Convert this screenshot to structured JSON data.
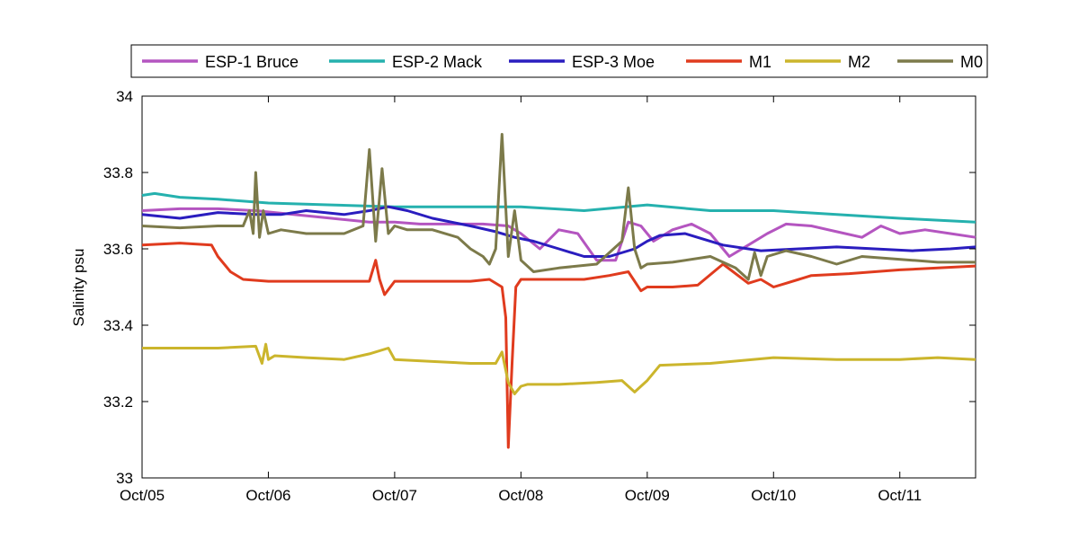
{
  "chart_data": {
    "type": "line",
    "title": "",
    "xlabel": "",
    "ylabel": "Salinity psu",
    "xlim": [
      0,
      6.6
    ],
    "ylim": [
      33,
      34
    ],
    "yticks": [
      33,
      33.2,
      33.4,
      33.6,
      33.8,
      34
    ],
    "ytick_labels": [
      "33",
      "33.2",
      "33.4",
      "33.6",
      "33.8",
      "34"
    ],
    "xticks": [
      0,
      1,
      2,
      3,
      4,
      5,
      6
    ],
    "xtick_labels": [
      "Oct/05",
      "Oct/06",
      "Oct/07",
      "Oct/08",
      "Oct/09",
      "Oct/10",
      "Oct/11"
    ],
    "grid": false,
    "legend_position": "top",
    "series": [
      {
        "name": "ESP-1 Bruce",
        "color": "#b455c0",
        "x": [
          0,
          0.3,
          0.6,
          0.9,
          1.2,
          1.5,
          1.8,
          2.0,
          2.2,
          2.5,
          2.7,
          2.9,
          3.0,
          3.15,
          3.3,
          3.45,
          3.6,
          3.75,
          3.85,
          3.95,
          4.05,
          4.2,
          4.35,
          4.5,
          4.65,
          4.8,
          4.95,
          5.1,
          5.3,
          5.5,
          5.7,
          5.85,
          6.0,
          6.2,
          6.4,
          6.6
        ],
        "y": [
          33.7,
          33.705,
          33.705,
          33.7,
          33.69,
          33.68,
          33.67,
          33.67,
          33.665,
          33.665,
          33.665,
          33.66,
          33.64,
          33.6,
          33.65,
          33.64,
          33.57,
          33.57,
          33.67,
          33.66,
          33.62,
          33.65,
          33.665,
          33.64,
          33.58,
          33.61,
          33.64,
          33.665,
          33.66,
          33.645,
          33.63,
          33.66,
          33.64,
          33.65,
          33.64,
          33.63
        ]
      },
      {
        "name": "ESP-2 Mack",
        "color": "#25b1ae",
        "x": [
          0,
          0.1,
          0.3,
          0.6,
          1.0,
          1.5,
          2.0,
          2.5,
          3.0,
          3.5,
          4.0,
          4.5,
          5.0,
          5.5,
          6.0,
          6.3,
          6.6
        ],
        "y": [
          33.74,
          33.745,
          33.735,
          33.73,
          33.72,
          33.715,
          33.71,
          33.71,
          33.71,
          33.7,
          33.715,
          33.7,
          33.7,
          33.69,
          33.68,
          33.675,
          33.67
        ]
      },
      {
        "name": "ESP-3 Moe",
        "color": "#2a1dbf",
        "x": [
          0,
          0.3,
          0.6,
          0.9,
          1.1,
          1.3,
          1.6,
          1.8,
          1.95,
          2.1,
          2.3,
          2.6,
          2.8,
          2.95,
          3.1,
          3.3,
          3.5,
          3.7,
          3.9,
          4.0,
          4.1,
          4.3,
          4.6,
          4.9,
          5.2,
          5.5,
          5.8,
          6.1,
          6.4,
          6.6
        ],
        "y": [
          33.69,
          33.68,
          33.695,
          33.69,
          33.69,
          33.7,
          33.69,
          33.7,
          33.71,
          33.7,
          33.68,
          33.66,
          33.645,
          33.63,
          33.62,
          33.6,
          33.58,
          33.58,
          33.6,
          33.62,
          33.635,
          33.64,
          33.61,
          33.595,
          33.6,
          33.605,
          33.6,
          33.595,
          33.6,
          33.605
        ]
      },
      {
        "name": "M1",
        "color": "#e03b1e",
        "x": [
          0,
          0.3,
          0.55,
          0.6,
          0.7,
          0.8,
          1.0,
          1.3,
          1.6,
          1.8,
          1.85,
          1.88,
          1.92,
          2.0,
          2.3,
          2.6,
          2.75,
          2.85,
          2.88,
          2.9,
          2.93,
          2.96,
          3.0,
          3.1,
          3.3,
          3.5,
          3.7,
          3.85,
          3.95,
          4.0,
          4.2,
          4.4,
          4.6,
          4.8,
          4.9,
          5.0,
          5.1,
          5.3,
          5.6,
          6.0,
          6.3,
          6.6
        ],
        "y": [
          33.61,
          33.615,
          33.61,
          33.58,
          33.54,
          33.52,
          33.515,
          33.515,
          33.515,
          33.515,
          33.57,
          33.52,
          33.48,
          33.515,
          33.515,
          33.515,
          33.52,
          33.5,
          33.42,
          33.08,
          33.3,
          33.5,
          33.52,
          33.52,
          33.52,
          33.52,
          33.53,
          33.54,
          33.49,
          33.5,
          33.5,
          33.505,
          33.56,
          33.51,
          33.52,
          33.5,
          33.51,
          33.53,
          33.535,
          33.545,
          33.55,
          33.555
        ]
      },
      {
        "name": "M2",
        "color": "#cbb52c",
        "x": [
          0,
          0.3,
          0.6,
          0.9,
          0.95,
          0.98,
          1.0,
          1.05,
          1.3,
          1.6,
          1.8,
          1.95,
          2.0,
          2.3,
          2.6,
          2.8,
          2.85,
          2.9,
          2.95,
          3.0,
          3.05,
          3.3,
          3.6,
          3.8,
          3.9,
          4.0,
          4.1,
          4.5,
          5.0,
          5.5,
          6.0,
          6.3,
          6.6
        ],
        "y": [
          33.34,
          33.34,
          33.34,
          33.345,
          33.3,
          33.35,
          33.31,
          33.32,
          33.315,
          33.31,
          33.325,
          33.34,
          33.31,
          33.305,
          33.3,
          33.3,
          33.33,
          33.25,
          33.22,
          33.24,
          33.245,
          33.245,
          33.25,
          33.255,
          33.225,
          33.255,
          33.295,
          33.3,
          33.315,
          33.31,
          33.31,
          33.315,
          33.31
        ]
      },
      {
        "name": "M0",
        "color": "#7c7a4a",
        "x": [
          0,
          0.3,
          0.6,
          0.8,
          0.85,
          0.88,
          0.9,
          0.93,
          0.96,
          1.0,
          1.1,
          1.3,
          1.6,
          1.75,
          1.8,
          1.85,
          1.9,
          1.95,
          2.0,
          2.1,
          2.3,
          2.5,
          2.6,
          2.7,
          2.75,
          2.8,
          2.85,
          2.9,
          2.95,
          3.0,
          3.1,
          3.3,
          3.6,
          3.8,
          3.85,
          3.9,
          3.95,
          4.0,
          4.2,
          4.5,
          4.7,
          4.8,
          4.85,
          4.9,
          4.95,
          5.1,
          5.3,
          5.5,
          5.7,
          5.9,
          6.1,
          6.3,
          6.6
        ],
        "y": [
          33.66,
          33.655,
          33.66,
          33.66,
          33.7,
          33.64,
          33.8,
          33.63,
          33.7,
          33.64,
          33.65,
          33.64,
          33.64,
          33.66,
          33.86,
          33.62,
          33.81,
          33.64,
          33.66,
          33.65,
          33.65,
          33.63,
          33.6,
          33.58,
          33.56,
          33.6,
          33.9,
          33.58,
          33.7,
          33.57,
          33.54,
          33.55,
          33.56,
          33.62,
          33.76,
          33.6,
          33.55,
          33.56,
          33.565,
          33.58,
          33.55,
          33.52,
          33.59,
          33.53,
          33.58,
          33.595,
          33.58,
          33.56,
          33.58,
          33.575,
          33.57,
          33.565,
          33.565
        ]
      }
    ]
  }
}
